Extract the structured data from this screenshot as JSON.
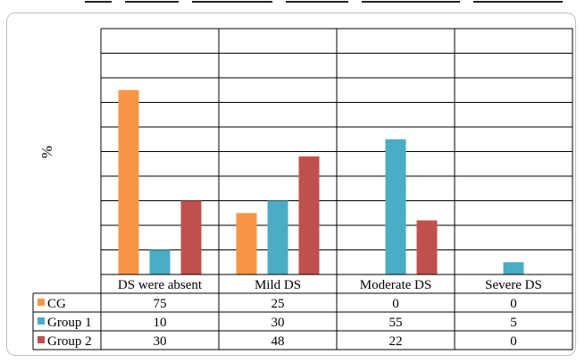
{
  "chart_data": {
    "type": "bar",
    "categories": [
      "DS were absent",
      "Mild DS",
      "Moderate DS",
      "Severe DS"
    ],
    "series": [
      {
        "name": "CG",
        "values": [
          75,
          25,
          0,
          0
        ],
        "color": "#F79646"
      },
      {
        "name": "Group 1",
        "values": [
          10,
          30,
          55,
          5
        ],
        "color": "#4BACC6"
      },
      {
        "name": "Group 2",
        "values": [
          30,
          48,
          22,
          0
        ],
        "color": "#C0504D"
      }
    ],
    "ylabel": "%",
    "ylim": [
      0,
      100
    ],
    "grid": true,
    "legend": "data-table",
    "table_values": [
      [
        "75",
        "25",
        "0",
        "0"
      ],
      [
        "10",
        "30",
        "55",
        "5"
      ],
      [
        "30",
        "48",
        "22",
        "0"
      ]
    ]
  }
}
